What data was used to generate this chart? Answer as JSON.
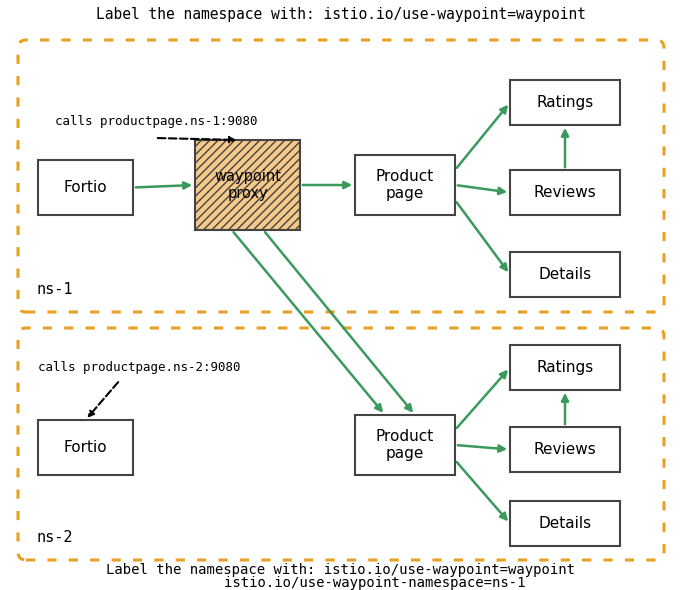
{
  "title_top": "Label the namespace with: istio.io/use-waypoint=waypoint",
  "title_bottom_line1": "Label the namespace with: istio.io/use-waypoint=waypoint",
  "title_bottom_line2": "        istio.io/use-waypoint-namespace=ns-1",
  "ns1_label": "ns-1",
  "ns2_label": "ns-2",
  "ns1_call_label": "calls productpage.ns-1:9080",
  "ns2_call_label": "calls productpage.ns-2:9080",
  "orange": "#E8A020",
  "green": "#3A9A5C",
  "bg": "#FFFFFF",
  "box_edge": "#444444",
  "waypoint_fill": "#F5C98A",
  "figsize": [
    6.82,
    5.9
  ],
  "dpi": 100
}
